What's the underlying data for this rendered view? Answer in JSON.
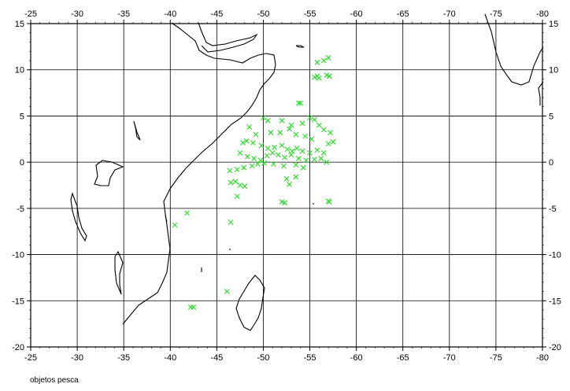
{
  "map": {
    "lon_range": [
      -25,
      -80
    ],
    "lat_range": [
      -20,
      15
    ],
    "lon_ticks": [
      "-25",
      "-30",
      "-35",
      "-40",
      "-45",
      "-50",
      "-55",
      "-60",
      "-65",
      "-70",
      "-75",
      "-80"
    ],
    "lat_ticks": [
      "15",
      "10",
      "5",
      "0",
      "-5",
      "-10",
      "-15",
      "-20"
    ],
    "grid": true,
    "marker_color": "#22dd22",
    "coast_color": "#000000",
    "caption": "objetos pesca"
  },
  "chart_data": {
    "type": "scatter",
    "marker": "x",
    "xlim": [
      -25,
      -80
    ],
    "ylim": [
      -20,
      15
    ],
    "points": [
      [
        -55.8,
        10.8
      ],
      [
        -56.5,
        11.0
      ],
      [
        -57.0,
        11.3
      ],
      [
        -55.5,
        9.2
      ],
      [
        -55.8,
        9.3
      ],
      [
        -56.0,
        9.1
      ],
      [
        -56.8,
        9.4
      ],
      [
        -57.1,
        9.3
      ],
      [
        -53.8,
        6.4
      ],
      [
        -54.0,
        6.4
      ],
      [
        -50.0,
        4.8
      ],
      [
        -50.5,
        4.5
      ],
      [
        -52.0,
        4.5
      ],
      [
        -53.0,
        4.0
      ],
      [
        -54.2,
        4.2
      ],
      [
        -55.0,
        4.8
      ],
      [
        -55.5,
        4.6
      ],
      [
        -56.0,
        4.0
      ],
      [
        -56.5,
        3.5
      ],
      [
        -57.2,
        3.2
      ],
      [
        -57.5,
        2.2
      ],
      [
        -57.0,
        2.0
      ],
      [
        -48.5,
        3.8
      ],
      [
        -49.2,
        3.0
      ],
      [
        -50.8,
        3.2
      ],
      [
        -51.8,
        3.2
      ],
      [
        -52.8,
        3.6
      ],
      [
        -53.5,
        3.0
      ],
      [
        -54.5,
        2.8
      ],
      [
        -55.2,
        2.5
      ],
      [
        -47.8,
        2.1
      ],
      [
        -48.2,
        2.3
      ],
      [
        -48.9,
        2.1
      ],
      [
        -49.8,
        1.8
      ],
      [
        -50.5,
        1.5
      ],
      [
        -51.2,
        1.6
      ],
      [
        -52.0,
        1.8
      ],
      [
        -52.6,
        1.4
      ],
      [
        -53.1,
        1.2
      ],
      [
        -53.6,
        1.5
      ],
      [
        -54.2,
        1.2
      ],
      [
        -55.0,
        1.0
      ],
      [
        -55.8,
        1.3
      ],
      [
        -56.5,
        1.0
      ],
      [
        -47.5,
        1.0
      ],
      [
        -48.3,
        0.6
      ],
      [
        -49.0,
        0.4
      ],
      [
        -49.7,
        0.2
      ],
      [
        -50.4,
        0.7
      ],
      [
        -51.0,
        1.0
      ],
      [
        -51.6,
        0.8
      ],
      [
        -52.3,
        0.5
      ],
      [
        -53.0,
        0.8
      ],
      [
        -53.8,
        0.4
      ],
      [
        -54.6,
        0.2
      ],
      [
        -55.5,
        0.3
      ],
      [
        -56.2,
        0.4
      ],
      [
        -56.8,
        0.0
      ],
      [
        -47.2,
        -0.8
      ],
      [
        -46.4,
        -0.9
      ],
      [
        -47.9,
        -0.6
      ],
      [
        -48.8,
        -0.4
      ],
      [
        -49.4,
        -0.2
      ],
      [
        -50.1,
        -0.1
      ],
      [
        -51.1,
        -0.2
      ],
      [
        -52.2,
        -0.4
      ],
      [
        -53.5,
        -0.3
      ],
      [
        -54.3,
        -0.6
      ],
      [
        -47.0,
        -2.1
      ],
      [
        -47.5,
        -2.5
      ],
      [
        -48.0,
        -2.6
      ],
      [
        -46.5,
        -2.2
      ],
      [
        -52.5,
        -1.8
      ],
      [
        -52.8,
        -2.4
      ],
      [
        -53.5,
        -1.6
      ],
      [
        -47.2,
        -3.7
      ],
      [
        -52.0,
        -4.3
      ],
      [
        -52.3,
        -4.4
      ],
      [
        -57.0,
        -4.2
      ],
      [
        -57.1,
        -4.3
      ],
      [
        -41.8,
        -5.5
      ],
      [
        -40.5,
        -6.8
      ],
      [
        -46.5,
        -6.5
      ],
      [
        -46.1,
        -14.0
      ],
      [
        -42.2,
        -15.7
      ],
      [
        -42.5,
        -15.7
      ]
    ]
  }
}
